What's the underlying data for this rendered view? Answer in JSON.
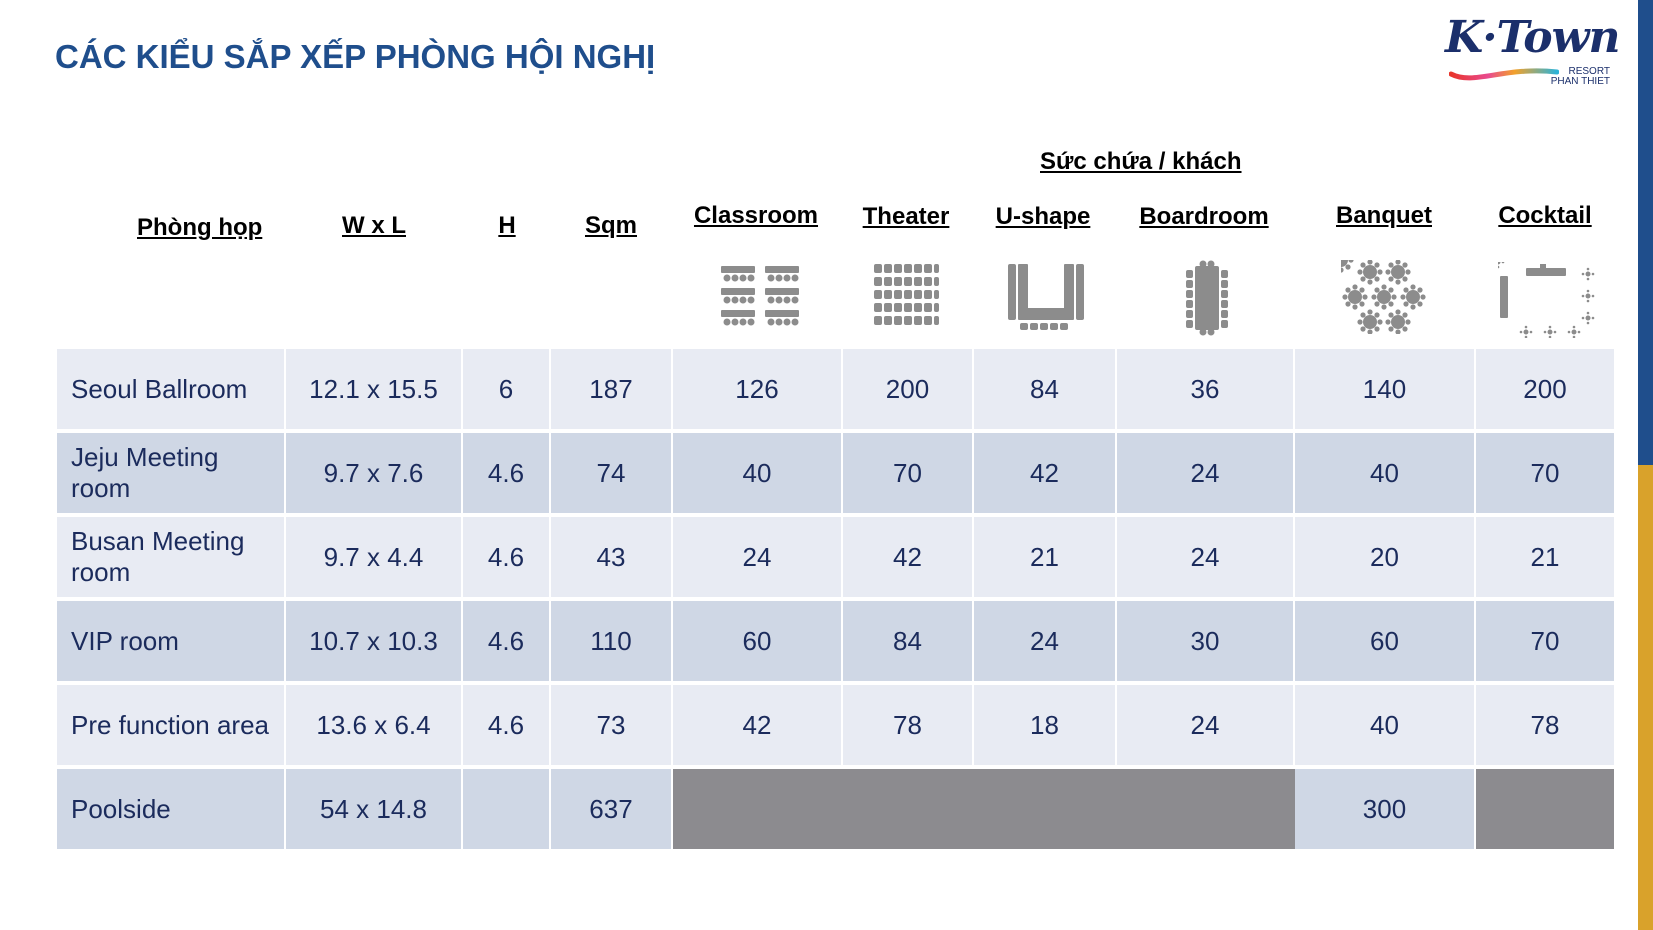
{
  "title": "CÁC KIỂU SẮP XẾP PHÒNG HỘI NGHỊ",
  "logo": {
    "main": "K·Town",
    "sub1": "RESORT",
    "sub2": "PHAN THIET"
  },
  "colors": {
    "title": "#1f4e8c",
    "accent_navy": "#1f4e8c",
    "accent_gold": "#d9a22b",
    "row_light": "#e8ebf3",
    "row_dark": "#cfd7e5",
    "unavailable": "#8c8b8f",
    "cell_text": "#1b2b5c"
  },
  "capacity_label": "Sức chứa / khách",
  "headers": {
    "room": "Phòng họp",
    "wxl": "W x L",
    "h": "H",
    "sqm": "Sqm",
    "classroom": "Classroom",
    "theater": "Theater",
    "ushape": "U-shape",
    "boardroom": "Boardroom",
    "banquet": "Banquet",
    "cocktail": "Cocktail"
  },
  "icons": {
    "classroom": "classroom-layout-icon",
    "theater": "theater-layout-icon",
    "ushape": "u-shape-layout-icon",
    "boardroom": "boardroom-layout-icon",
    "banquet": "banquet-layout-icon",
    "cocktail": "cocktail-layout-icon"
  },
  "rows": [
    {
      "name": "Seoul Ballroom",
      "wxl": "12.1 x 15.5",
      "h": "6",
      "sqm": "187",
      "classroom": "126",
      "theater": "200",
      "ushape": "84",
      "boardroom": "36",
      "banquet": "140",
      "cocktail": "200"
    },
    {
      "name": "Jeju Meeting room",
      "wxl": "9.7 x 7.6",
      "h": "4.6",
      "sqm": "74",
      "classroom": "40",
      "theater": "70",
      "ushape": "42",
      "boardroom": "24",
      "banquet": "40",
      "cocktail": "70"
    },
    {
      "name": "Busan Meeting room",
      "wxl": "9.7 x 4.4",
      "h": "4.6",
      "sqm": "43",
      "classroom": "24",
      "theater": "42",
      "ushape": "21",
      "boardroom": "24",
      "banquet": "20",
      "cocktail": "21"
    },
    {
      "name": "VIP room",
      "wxl": "10.7 x 10.3",
      "h": "4.6",
      "sqm": "110",
      "classroom": "60",
      "theater": "84",
      "ushape": "24",
      "boardroom": "30",
      "banquet": "60",
      "cocktail": "70"
    },
    {
      "name": "Pre function area",
      "wxl": "13.6 x 6.4",
      "h": "4.6",
      "sqm": "73",
      "classroom": "42",
      "theater": "78",
      "ushape": "18",
      "boardroom": "24",
      "banquet": "40",
      "cocktail": "78"
    },
    {
      "name": "Poolside",
      "wxl": "54 x 14.8",
      "h": "",
      "sqm": "637",
      "classroom": null,
      "theater": null,
      "ushape": null,
      "boardroom": null,
      "banquet": "300",
      "cocktail": null
    }
  ]
}
